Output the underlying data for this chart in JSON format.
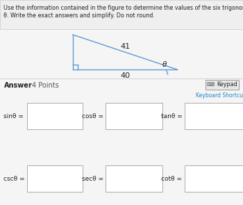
{
  "title_line1": "Use the information contained in the figure to determine the values of the six trigonometric functions of",
  "title_line2": "θ. Write the exact answers and simplify. Do not round.",
  "hypotenuse_label": "41",
  "base_label": "40",
  "theta_label": "θ",
  "answer_label": "Answer",
  "points_label": "4 Points",
  "keypad_label": "Keypad",
  "keyboard_label": "Keyboard Shortcuts",
  "trig_labels_row1": [
    "sinθ =",
    "cosθ =",
    "tanθ ="
  ],
  "trig_labels_row2": [
    "cscθ =",
    "secθ =",
    "cotθ ="
  ],
  "bg_color": "#f5f5f5",
  "triangle_color": "#5b9bd5",
  "box_edge_color": "#aaaaaa",
  "title_bg": "#efefef",
  "title_border": "#cccccc"
}
